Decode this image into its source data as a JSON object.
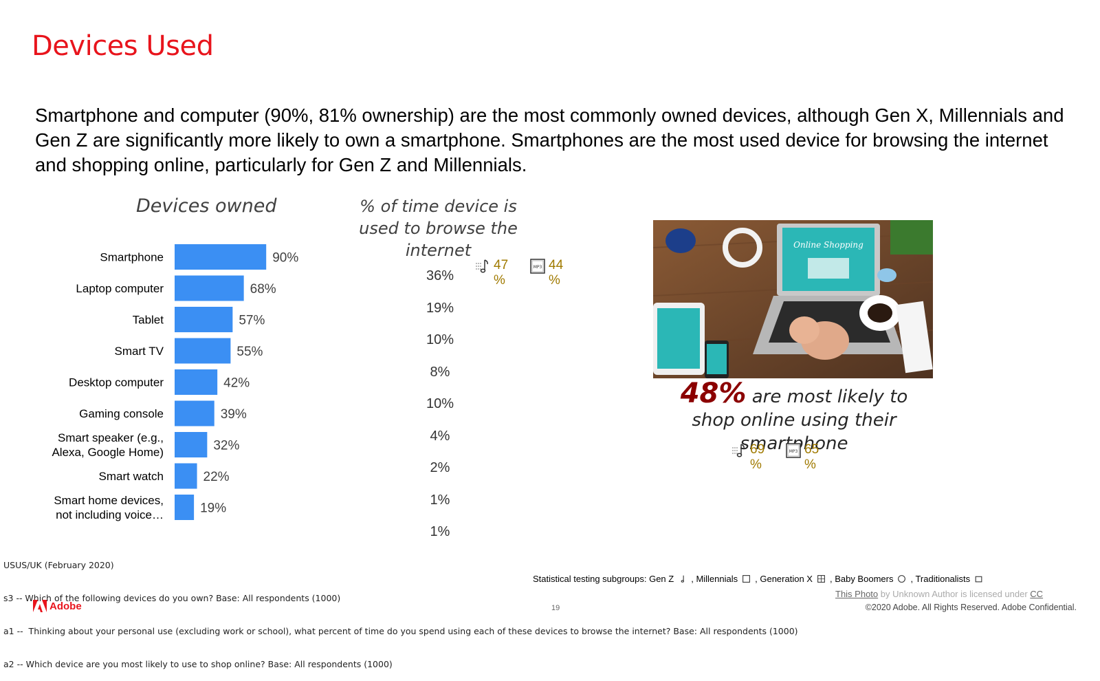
{
  "slide": {
    "title": "Devices Used",
    "intro": "Smartphone and computer (90%, 81% ownership) are the most commonly owned devices, although Gen X, Millennials and Gen Z are significantly more likely to own a smartphone.  Smartphones are the most used device for browsing the internet and shopping online, particularly for Gen Z and Millennials.",
    "page_number": "19",
    "copyright": "©2020 Adobe. All Rights Reserved. Adobe Confidential.",
    "logo_text": "Adobe"
  },
  "chart_data": [
    {
      "type": "bar",
      "orientation": "horizontal",
      "title": "Devices owned",
      "categories": [
        "Smartphone",
        "Laptop computer",
        "Tablet",
        "Smart TV",
        "Desktop computer",
        "Gaming console",
        "Smart speaker (e.g., Alexa, Google Home)",
        "Smart watch",
        "Smart home devices, not including voice…"
      ],
      "category_lines": [
        [
          "Smartphone"
        ],
        [
          "Laptop computer"
        ],
        [
          "Tablet"
        ],
        [
          "Smart TV"
        ],
        [
          "Desktop computer"
        ],
        [
          "Gaming console"
        ],
        [
          "Smart speaker (e.g.,",
          "Alexa, Google Home)"
        ],
        [
          "Smart watch"
        ],
        [
          "Smart home devices,",
          "not including voice…"
        ]
      ],
      "values": [
        90,
        68,
        57,
        55,
        42,
        39,
        32,
        22,
        19
      ],
      "labels": [
        "90%",
        "68%",
        "57%",
        "55%",
        "42%",
        "39%",
        "32%",
        "22%",
        "19%"
      ],
      "xlim": [
        0,
        100
      ],
      "bar_color": "#3b8ff3"
    },
    {
      "type": "table",
      "title": "% of time device is used to browse the internet",
      "title_lines": [
        "% of time device is",
        "used to browse the",
        "internet"
      ],
      "values": [
        36,
        19,
        10,
        8,
        10,
        4,
        2,
        1,
        1
      ],
      "labels": [
        "36%",
        "19%",
        "10%",
        "8%",
        "10%",
        "4%",
        "2%",
        "1%",
        "1%"
      ],
      "significance": [
        {
          "row": 0,
          "group": "Gen Z",
          "value_lines": [
            "47",
            "%"
          ],
          "icon": "music-note-icon"
        },
        {
          "row": 0,
          "group": "Millennials",
          "value_lines": [
            "44",
            "%"
          ],
          "icon": "mp3-file-icon"
        }
      ]
    }
  ],
  "callout": {
    "big": "48%",
    "text_lines": [
      "are most likely to",
      "shop online using their",
      "smartphone"
    ],
    "significance": [
      {
        "group": "Gen Z",
        "value_lines": [
          "69",
          "%"
        ],
        "icon": "music-note-icon"
      },
      {
        "group": "Millennials",
        "value_lines": [
          "65",
          "%"
        ],
        "icon": "mp3-file-icon"
      }
    ]
  },
  "photo": {
    "screen_text": "Online Shopping"
  },
  "footnotes": [
    "USUS/UK (February 2020)",
    "s3 -- Which of the following devices do you own? Base: All respondents (1000)",
    "a1 --  Thinking about your personal use (excluding work or school), what percent of time do you spend using each of these devices to browse the internet? Base: All respondents (1000)",
    "a2 -- Which device are you most likely to use to shop online? Base: All respondents (1000)"
  ],
  "subgroups": {
    "label": "Statistical testing subgroups: Gen Z",
    "items": [
      ", Millennials",
      ", Generation X",
      ", Baby Boomers",
      ", Traditionalists"
    ]
  },
  "credit": {
    "link_text": "This Photo",
    "middle_text": " by Unknown Author is licensed under ",
    "license_text": "CC"
  }
}
